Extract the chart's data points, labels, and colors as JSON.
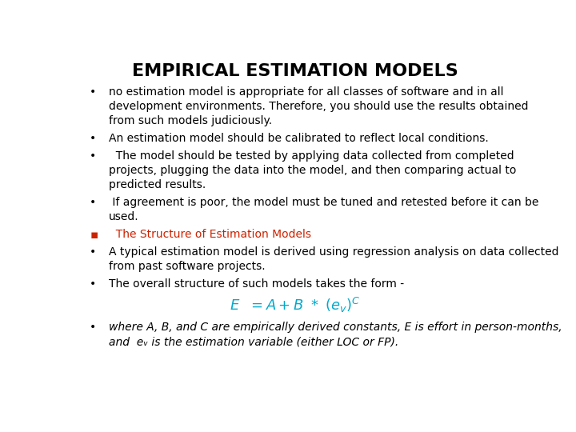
{
  "title": "EMPIRICAL ESTIMATION MODELS",
  "title_fontsize": 16,
  "title_color": "#000000",
  "background_color": "#ffffff",
  "body_fontsize": 10.0,
  "red_color": "#cc2200",
  "cyan_color": "#00aacc",
  "formula_fontsize": 13,
  "bullet1_lines": [
    "no estimation model is appropriate for all classes of software and in all",
    "development environments. Therefore, you should use the results obtained",
    "from such models judiciously."
  ],
  "bullet2_lines": [
    "An estimation model should be calibrated to reflect local conditions."
  ],
  "bullet3_lines": [
    "  The model should be tested by applying data collected from completed",
    "projects, plugging the data into the model, and then comparing actual to",
    "predicted results."
  ],
  "bullet4_lines": [
    " If agreement is poor, the model must be tuned and retested before it can be",
    "used."
  ],
  "red_bullet_lines": [
    "  The Structure of Estimation Models"
  ],
  "bullet6_lines": [
    "A typical estimation model is derived using regression analysis on data collected",
    "from past software projects."
  ],
  "bullet7_lines": [
    "The overall structure of such models takes the form -"
  ],
  "last_bullet_lines": [
    "where A, B, and C are empirically derived constants, E is effort in person-months,",
    "and  eᵥ is the estimation variable (either LOC or FP)."
  ]
}
